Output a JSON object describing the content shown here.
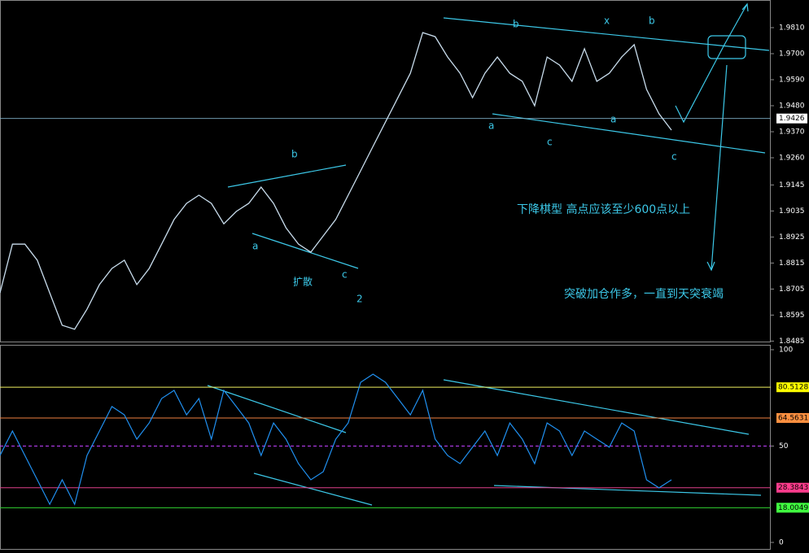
{
  "price_panel": {
    "yticks": [
      {
        "value": 1.981,
        "label": "1.9810"
      },
      {
        "value": 1.97,
        "label": "1.9700"
      },
      {
        "value": 1.959,
        "label": "1.9590"
      },
      {
        "value": 1.948,
        "label": "1.9480"
      },
      {
        "value": 1.937,
        "label": "1.9370"
      },
      {
        "value": 1.926,
        "label": "1.9260"
      },
      1.9145,
      1.9035,
      1.8925,
      1.8815,
      1.8705,
      1.8595,
      1.8485
    ],
    "current": 1.9426,
    "closes": [
      1.8689,
      1.8895,
      1.8895,
      1.8827,
      1.8689,
      1.8552,
      1.8535,
      1.862,
      1.8724,
      1.8792,
      1.8827,
      1.8724,
      1.8792,
      1.8895,
      1.8999,
      1.9067,
      1.9102,
      1.9067,
      1.8981,
      1.9033,
      1.9067,
      1.9136,
      1.9067,
      1.8964,
      1.8895,
      1.8861,
      1.893,
      1.8999,
      1.9102,
      1.9205,
      1.9308,
      1.9411,
      1.9514,
      1.9617,
      1.9789,
      1.9772,
      1.9686,
      1.9617,
      1.9514,
      1.9617,
      1.9686,
      1.9617,
      1.9583,
      1.948,
      1.9686,
      1.9652,
      1.9583,
      1.9721,
      1.9583,
      1.9617,
      1.9686,
      1.9738,
      1.9549,
      1.9446,
      1.9377
    ],
    "annotations": [
      "b",
      "a",
      "c",
      "扩散",
      "2",
      "b",
      "x",
      "b",
      "a",
      "c",
      "a",
      "c",
      "下降棋型  高点应该至少600点以上",
      "突破加仓作多，一直到天突衰竭"
    ]
  },
  "rsi_panel": {
    "yticks": [
      100,
      50,
      0
    ],
    "levels": [
      80.5128,
      64.5631,
      28.3843,
      18.0049
    ],
    "values": [
      45.1,
      57.8,
      45.1,
      32.5,
      19.8,
      32.5,
      19.8,
      45.1,
      57.8,
      70.5,
      66.2,
      53.6,
      62.0,
      74.7,
      78.9,
      66.2,
      74.7,
      53.6,
      78.9,
      70.5,
      62.0,
      45.1,
      62.0,
      53.6,
      40.9,
      32.5,
      36.7,
      53.6,
      62.0,
      83.1,
      87.3,
      83.1,
      74.7,
      66.2,
      78.9,
      53.6,
      45.1,
      40.9,
      49.4,
      57.8,
      45.1,
      62.0,
      53.6,
      40.9,
      62.0,
      57.8,
      45.1,
      57.8,
      53.6,
      49.4,
      62.0,
      57.8,
      32.5,
      28.3,
      32.5
    ]
  }
}
